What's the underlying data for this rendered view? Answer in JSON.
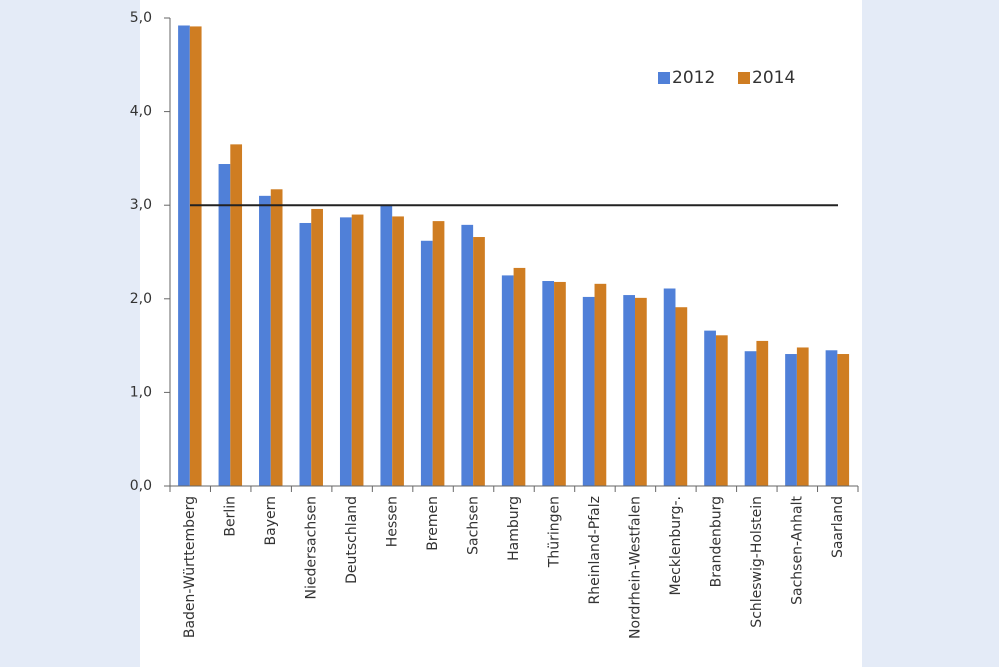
{
  "chart_data": {
    "type": "bar",
    "categories": [
      "Baden-Württemberg",
      "Berlin",
      "Bayern",
      "Niedersachsen",
      "Deutschland",
      "Hessen",
      "Bremen",
      "Sachsen",
      "Hamburg",
      "Thüringen",
      "Rheinland-Pfalz",
      "Nordrhein-Westfalen",
      "Mecklenburg-.",
      "Brandenburg",
      "Schleswig-Holstein",
      "Sachsen-Anhalt",
      "Saarland"
    ],
    "series": [
      {
        "name": "2012",
        "color": "#5080d8",
        "values": [
          4.92,
          3.44,
          3.1,
          2.81,
          2.87,
          3.0,
          2.62,
          2.79,
          2.25,
          2.19,
          2.02,
          2.04,
          2.11,
          1.66,
          1.44,
          1.41,
          1.45
        ]
      },
      {
        "name": "2014",
        "color": "#cf7d22",
        "values": [
          4.91,
          3.65,
          3.17,
          2.96,
          2.9,
          2.88,
          2.83,
          2.66,
          2.33,
          2.18,
          2.16,
          2.01,
          1.91,
          1.61,
          1.55,
          1.48,
          1.41
        ]
      }
    ],
    "ylim": [
      0,
      5
    ],
    "yticks": [
      {
        "value": 0,
        "label": "0,0"
      },
      {
        "value": 1,
        "label": "1,0"
      },
      {
        "value": 2,
        "label": "2,0"
      },
      {
        "value": 3,
        "label": "3,0"
      },
      {
        "value": 4,
        "label": "4,0"
      },
      {
        "value": 5,
        "label": "5,0"
      }
    ],
    "reference_line": 3,
    "legend": "top-right"
  }
}
